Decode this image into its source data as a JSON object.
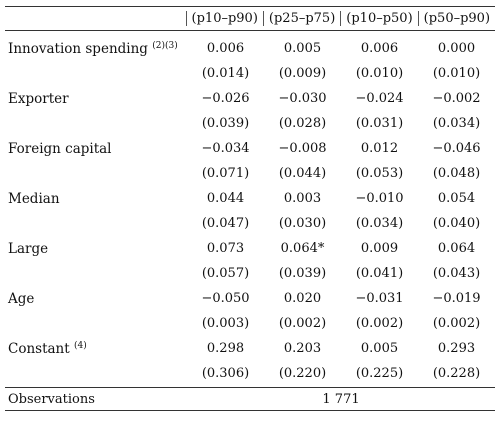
{
  "columns": [
    "(p10–p90)",
    "(p25–p75)",
    "(p10–p50)",
    "(p50–p90)"
  ],
  "rows": [
    {
      "label": "Innovation spending",
      "note": "(2)(3)",
      "estimates": [
        "0.006",
        "0.005",
        "0.006",
        "0.000"
      ],
      "se": [
        "(0.014)",
        "(0.009)",
        "(0.010)",
        "(0.010)"
      ]
    },
    {
      "label": "Exporter",
      "note": "",
      "estimates": [
        "−0.026",
        "−0.030",
        "−0.024",
        "−0.002"
      ],
      "se": [
        "(0.039)",
        "(0.028)",
        "(0.031)",
        "(0.034)"
      ]
    },
    {
      "label": "Foreign capital",
      "note": "",
      "estimates": [
        "−0.034",
        "−0.008",
        "0.012",
        "−0.046"
      ],
      "se": [
        "(0.071)",
        "(0.044)",
        "(0.053)",
        "(0.048)"
      ]
    },
    {
      "label": "Median",
      "note": "",
      "estimates": [
        "0.044",
        "0.003",
        "−0.010",
        "0.054"
      ],
      "se": [
        "(0.047)",
        "(0.030)",
        "(0.034)",
        "(0.040)"
      ]
    },
    {
      "label": "Large",
      "note": "",
      "estimates": [
        "0.073",
        "0.064*",
        "0.009",
        "0.064"
      ],
      "se": [
        "(0.057)",
        "(0.039)",
        "(0.041)",
        "(0.043)"
      ]
    },
    {
      "label": "Age",
      "note": "",
      "estimates": [
        "−0.050",
        "0.020",
        "−0.031",
        "−0.019"
      ],
      "se": [
        "(0.003)",
        "(0.002)",
        "(0.002)",
        "(0.002)"
      ]
    },
    {
      "label": "Constant",
      "note": "(4)",
      "estimates": [
        "0.298",
        "0.203",
        "0.005",
        "0.293"
      ],
      "se": [
        "(0.306)",
        "(0.220)",
        "(0.225)",
        "(0.228)"
      ]
    }
  ],
  "observations": {
    "label": "Observations",
    "value": "1 771"
  }
}
